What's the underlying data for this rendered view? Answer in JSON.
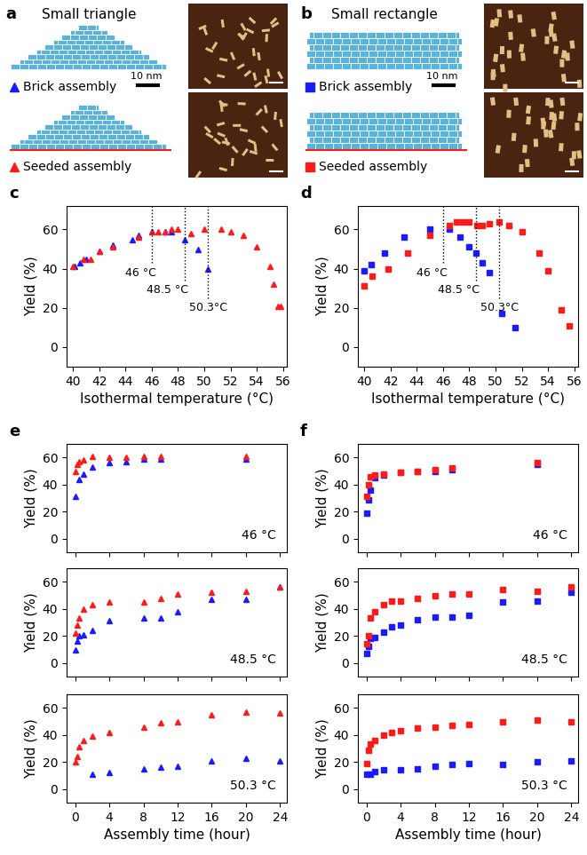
{
  "diagrams": [
    {
      "panel_label": "a",
      "title": "Small triangle",
      "shape": "triangle",
      "scale_bar": "10 nm",
      "rows": [
        {
          "label": "Brick assembly",
          "marker": "triangle",
          "color": "#1a1aff"
        },
        {
          "label": "Seeded assembly",
          "marker": "triangle",
          "color": "#ff1a1a"
        }
      ]
    },
    {
      "panel_label": "b",
      "title": "Small rectangle",
      "shape": "rectangle",
      "scale_bar": "10 nm",
      "rows": [
        {
          "label": "Brick assembly",
          "marker": "square",
          "color": "#1a1aff"
        },
        {
          "label": "Seeded assembly",
          "marker": "square",
          "color": "#ff1a1a"
        }
      ]
    }
  ],
  "chart_data": [
    {
      "type": "scatter",
      "panel_label": "c",
      "xlabel": "Isothermal temperature (°C)",
      "ylabel": "Yield (%)",
      "xlim": [
        39.5,
        56.3
      ],
      "ylim": [
        -10,
        72
      ],
      "xticks": [
        40,
        42,
        44,
        46,
        48,
        50,
        52,
        54,
        56
      ],
      "yticks": [
        0,
        20,
        40,
        60
      ],
      "vlines": [
        {
          "x": 46,
          "label": "46 °C"
        },
        {
          "x": 48.5,
          "label": "48.5 °C"
        },
        {
          "x": 50.3,
          "label": "50.3°C"
        }
      ],
      "series": [
        {
          "color": "#1a1aff",
          "marker": "triangle",
          "x": [
            40.1,
            40.5,
            41,
            42,
            43,
            44.5,
            45,
            46,
            47,
            47.5,
            48.5,
            49.5,
            50.3
          ],
          "values": [
            41,
            43,
            45,
            49,
            52,
            55,
            57,
            59,
            59,
            59,
            55,
            50,
            40
          ]
        },
        {
          "color": "#ff1a1a",
          "marker": "triangle",
          "x": [
            40,
            40.8,
            41.3,
            42,
            43,
            45,
            46,
            46.5,
            47,
            47.5,
            48,
            49,
            50,
            51.3,
            52,
            53,
            54,
            55,
            55.3,
            55.6,
            55.8
          ],
          "values": [
            41,
            45,
            45,
            49,
            51,
            56,
            59,
            59,
            59,
            60,
            60,
            58,
            60,
            60,
            59,
            57,
            51,
            41,
            32,
            21,
            21
          ]
        }
      ]
    },
    {
      "type": "scatter",
      "panel_label": "d",
      "xlabel": "Isothermal temperature (°C)",
      "ylabel": "Yield (%)",
      "xlim": [
        39.5,
        56.3
      ],
      "ylim": [
        -10,
        72
      ],
      "xticks": [
        40,
        42,
        44,
        46,
        48,
        50,
        52,
        54,
        56
      ],
      "yticks": [
        0,
        20,
        40,
        60
      ],
      "vlines": [
        {
          "x": 46,
          "label": "46 °C"
        },
        {
          "x": 48.5,
          "label": "48.5 °C"
        },
        {
          "x": 50.3,
          "label": "50.3°C"
        }
      ],
      "series": [
        {
          "color": "#1a1aff",
          "marker": "square",
          "x": [
            40,
            40.5,
            41.5,
            43,
            45,
            46.5,
            47.3,
            48,
            48.5,
            49,
            49.5,
            50.5,
            51.5
          ],
          "values": [
            39,
            42,
            48,
            56,
            60,
            60,
            56,
            51,
            48,
            43,
            38,
            17,
            10
          ]
        },
        {
          "color": "#ff1a1a",
          "marker": "square",
          "x": [
            40,
            40.6,
            41.8,
            43.3,
            45,
            46.5,
            47,
            47.5,
            48,
            48.6,
            49,
            49.5,
            50.3,
            51,
            52,
            53.3,
            54,
            55,
            55.6
          ],
          "values": [
            31,
            36,
            40,
            48,
            57,
            62,
            64,
            64,
            64,
            62,
            62,
            63,
            64,
            62,
            59,
            48,
            39,
            19,
            11
          ]
        }
      ]
    },
    {
      "type": "scatter",
      "panel_label": "e",
      "ylabel": "Yield (%)",
      "annotation": "46 °C",
      "tick_labels": "y",
      "xlim": [
        -1,
        24.8
      ],
      "ylim": [
        -10,
        70
      ],
      "xticks": [
        0,
        4,
        8,
        12,
        16,
        20,
        24
      ],
      "yticks": [
        0,
        20,
        40,
        60
      ],
      "series": [
        {
          "color": "#1a1aff",
          "marker": "triangle",
          "x": [
            0,
            0.5,
            1,
            2,
            4,
            6,
            8,
            10,
            20
          ],
          "values": [
            31,
            44,
            48,
            53,
            56,
            57,
            59,
            59,
            59
          ]
        },
        {
          "color": "#ff1a1a",
          "marker": "triangle",
          "x": [
            0,
            0.25,
            0.5,
            1,
            2,
            4,
            6,
            8,
            10,
            20
          ],
          "values": [
            50,
            55,
            57,
            58,
            61,
            60,
            60,
            61,
            61,
            61
          ]
        }
      ]
    },
    {
      "type": "scatter",
      "ylabel": "Yield (%)",
      "annotation": "48.5 °C",
      "tick_labels": "y",
      "xlim": [
        -1,
        24.8
      ],
      "ylim": [
        -10,
        70
      ],
      "xticks": [
        0,
        4,
        8,
        12,
        16,
        20,
        24
      ],
      "yticks": [
        0,
        20,
        40,
        60
      ],
      "series": [
        {
          "color": "#1a1aff",
          "marker": "triangle",
          "x": [
            0,
            0.25,
            0.5,
            1,
            2,
            4,
            8,
            10,
            12,
            16,
            20,
            24
          ],
          "values": [
            10,
            16,
            20,
            21,
            24,
            31,
            33,
            33,
            38,
            47,
            47,
            56
          ]
        },
        {
          "color": "#ff1a1a",
          "marker": "triangle",
          "x": [
            0,
            0.25,
            0.5,
            1,
            2,
            4,
            8,
            10,
            12,
            16,
            20,
            24
          ],
          "values": [
            22,
            28,
            33,
            40,
            43,
            45,
            45,
            48,
            51,
            52,
            53,
            56
          ]
        }
      ]
    },
    {
      "type": "scatter",
      "ylabel": "Yield (%)",
      "xlabel": "Assembly time (hour)",
      "annotation": "50.3 °C",
      "xlim": [
        -1,
        24.8
      ],
      "ylim": [
        -10,
        70
      ],
      "xticks": [
        0,
        4,
        8,
        12,
        16,
        20,
        24
      ],
      "yticks": [
        0,
        20,
        40,
        60
      ],
      "series": [
        {
          "color": "#1a1aff",
          "marker": "triangle",
          "x": [
            2,
            4,
            8,
            10,
            12,
            16,
            20,
            24
          ],
          "values": [
            11,
            12,
            15,
            16,
            17,
            21,
            23,
            21
          ]
        },
        {
          "color": "#ff1a1a",
          "marker": "triangle",
          "x": [
            0,
            0.25,
            0.5,
            1,
            2,
            4,
            8,
            10,
            12,
            16,
            20,
            24
          ],
          "values": [
            20,
            24,
            31,
            36,
            39,
            42,
            46,
            49,
            50,
            55,
            57,
            56
          ]
        }
      ]
    },
    {
      "type": "scatter",
      "panel_label": "f",
      "ylabel": "Yield (%)",
      "annotation": "46 °C",
      "tick_labels": "y",
      "xlim": [
        -1,
        24.8
      ],
      "ylim": [
        -10,
        70
      ],
      "xticks": [
        0,
        4,
        8,
        12,
        16,
        20,
        24
      ],
      "yticks": [
        0,
        20,
        40,
        60
      ],
      "series": [
        {
          "color": "#1a1aff",
          "marker": "square",
          "x": [
            0,
            0.25,
            0.5,
            1,
            2,
            4,
            6,
            8,
            10,
            20
          ],
          "values": [
            19,
            29,
            36,
            45,
            47,
            49,
            50,
            50,
            51,
            55
          ]
        },
        {
          "color": "#ff1a1a",
          "marker": "square",
          "x": [
            0,
            0.25,
            0.5,
            1,
            2,
            4,
            6,
            8,
            10,
            20
          ],
          "values": [
            31,
            40,
            46,
            47,
            48,
            49,
            50,
            51,
            52,
            56
          ]
        }
      ]
    },
    {
      "type": "scatter",
      "ylabel": "Yield (%)",
      "annotation": "48.5 °C",
      "tick_labels": "y",
      "xlim": [
        -1,
        24.8
      ],
      "ylim": [
        -10,
        70
      ],
      "xticks": [
        0,
        4,
        8,
        12,
        16,
        20,
        24
      ],
      "yticks": [
        0,
        20,
        40,
        60
      ],
      "series": [
        {
          "color": "#1a1aff",
          "marker": "square",
          "x": [
            0,
            0.25,
            0.5,
            1,
            2,
            3,
            4,
            6,
            8,
            10,
            12,
            16,
            20,
            24
          ],
          "values": [
            7,
            12,
            18,
            19,
            23,
            27,
            28,
            32,
            34,
            34,
            35,
            45,
            46,
            52
          ]
        },
        {
          "color": "#ff1a1a",
          "marker": "square",
          "x": [
            0,
            0.25,
            0.5,
            1,
            2,
            3,
            4,
            6,
            8,
            10,
            12,
            16,
            20,
            24
          ],
          "values": [
            14,
            20,
            33,
            38,
            43,
            46,
            46,
            48,
            50,
            51,
            51,
            54,
            53,
            56
          ]
        }
      ]
    },
    {
      "type": "scatter",
      "ylabel": "Yield (%)",
      "xlabel": "Assembly time (hour)",
      "annotation": "50.3 °C",
      "xlim": [
        -1,
        24.8
      ],
      "ylim": [
        -10,
        70
      ],
      "xticks": [
        0,
        4,
        8,
        12,
        16,
        20,
        24
      ],
      "yticks": [
        0,
        20,
        40,
        60
      ],
      "series": [
        {
          "color": "#1a1aff",
          "marker": "square",
          "x": [
            0,
            0.5,
            1,
            2,
            4,
            6,
            8,
            10,
            12,
            16,
            20,
            24
          ],
          "values": [
            11,
            11,
            13,
            14,
            14,
            15,
            17,
            18,
            19,
            18,
            20,
            21
          ]
        },
        {
          "color": "#ff1a1a",
          "marker": "square",
          "x": [
            0,
            0.25,
            0.5,
            1,
            2,
            3,
            4,
            6,
            8,
            10,
            12,
            16,
            20,
            24
          ],
          "values": [
            19,
            29,
            33,
            36,
            40,
            42,
            43,
            45,
            46,
            47,
            48,
            50,
            51,
            50
          ]
        }
      ]
    }
  ]
}
